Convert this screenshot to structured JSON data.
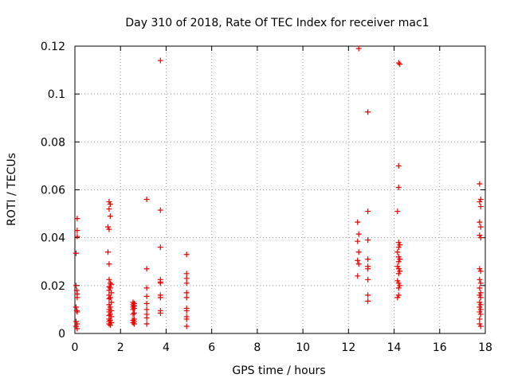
{
  "chart_data": {
    "type": "scatter",
    "title": "Day 310 of 2018, Rate Of TEC Index for receiver mac1",
    "xlabel": "GPS time / hours",
    "ylabel": "ROTI / TECUs",
    "xlim": [
      0,
      18
    ],
    "ylim": [
      0,
      0.12
    ],
    "x_ticks": [
      0,
      2,
      4,
      6,
      8,
      10,
      12,
      14,
      16,
      18
    ],
    "y_ticks": [
      0,
      0.02,
      0.04,
      0.06,
      0.08,
      0.1,
      0.12
    ],
    "x_tick_labels": [
      "0",
      "2",
      "4",
      "6",
      "8",
      "10",
      "12",
      "14",
      "16",
      "18"
    ],
    "y_tick_labels": [
      "0",
      "0.02",
      "0.04",
      "0.06",
      "0.08",
      "0.1",
      "0.12"
    ],
    "grid": true,
    "marker": "+",
    "colors": {
      "points": "#e60000",
      "grid": "#a0a0a0",
      "axes": "#000000"
    },
    "series": [
      {
        "name": "ROTI",
        "points": [
          [
            0.05,
            0.0335
          ],
          [
            0.1,
            0.048
          ],
          [
            0.1,
            0.043
          ],
          [
            0.1,
            0.0405
          ],
          [
            0.05,
            0.02
          ],
          [
            0.08,
            0.018
          ],
          [
            0.1,
            0.0165
          ],
          [
            0.1,
            0.015
          ],
          [
            0.05,
            0.011
          ],
          [
            0.08,
            0.0095
          ],
          [
            0.1,
            0.009
          ],
          [
            0.05,
            0.005
          ],
          [
            0.1,
            0.004
          ],
          [
            0.05,
            0.003
          ],
          [
            0.1,
            0.002
          ],
          [
            1.5,
            0.055
          ],
          [
            1.55,
            0.054
          ],
          [
            1.5,
            0.052
          ],
          [
            1.55,
            0.049
          ],
          [
            1.45,
            0.0445
          ],
          [
            1.5,
            0.0435
          ],
          [
            1.45,
            0.034
          ],
          [
            1.5,
            0.029
          ],
          [
            1.5,
            0.0225
          ],
          [
            1.55,
            0.021
          ],
          [
            1.6,
            0.0205
          ],
          [
            1.5,
            0.0195
          ],
          [
            1.55,
            0.019
          ],
          [
            1.5,
            0.018
          ],
          [
            1.6,
            0.017
          ],
          [
            1.5,
            0.016
          ],
          [
            1.55,
            0.015
          ],
          [
            1.5,
            0.0145
          ],
          [
            1.6,
            0.013
          ],
          [
            1.5,
            0.012
          ],
          [
            1.55,
            0.011
          ],
          [
            1.5,
            0.01
          ],
          [
            1.6,
            0.0095
          ],
          [
            1.5,
            0.009
          ],
          [
            1.55,
            0.008
          ],
          [
            1.5,
            0.0075
          ],
          [
            1.6,
            0.007
          ],
          [
            1.5,
            0.006
          ],
          [
            1.55,
            0.0055
          ],
          [
            1.5,
            0.005
          ],
          [
            1.6,
            0.0045
          ],
          [
            1.5,
            0.004
          ],
          [
            1.55,
            0.0035
          ],
          [
            2.55,
            0.013
          ],
          [
            2.6,
            0.0125
          ],
          [
            2.55,
            0.012
          ],
          [
            2.6,
            0.0115
          ],
          [
            2.55,
            0.011
          ],
          [
            2.6,
            0.0105
          ],
          [
            2.55,
            0.01
          ],
          [
            2.6,
            0.0085
          ],
          [
            2.55,
            0.008
          ],
          [
            2.6,
            0.006
          ],
          [
            2.55,
            0.0055
          ],
          [
            2.6,
            0.005
          ],
          [
            2.55,
            0.0045
          ],
          [
            2.6,
            0.004
          ],
          [
            3.15,
            0.056
          ],
          [
            3.15,
            0.027
          ],
          [
            3.15,
            0.019
          ],
          [
            3.15,
            0.0155
          ],
          [
            3.15,
            0.0125
          ],
          [
            3.15,
            0.01
          ],
          [
            3.15,
            0.008
          ],
          [
            3.15,
            0.0065
          ],
          [
            3.15,
            0.004
          ],
          [
            3.75,
            0.114
          ],
          [
            3.75,
            0.0515
          ],
          [
            3.75,
            0.036
          ],
          [
            3.75,
            0.0225
          ],
          [
            3.75,
            0.0215
          ],
          [
            3.75,
            0.021
          ],
          [
            3.75,
            0.016
          ],
          [
            3.75,
            0.015
          ],
          [
            3.75,
            0.0095
          ],
          [
            3.75,
            0.0085
          ],
          [
            4.9,
            0.033
          ],
          [
            4.9,
            0.025
          ],
          [
            4.9,
            0.023
          ],
          [
            4.9,
            0.021
          ],
          [
            4.9,
            0.017
          ],
          [
            4.9,
            0.015
          ],
          [
            4.9,
            0.0105
          ],
          [
            4.9,
            0.0095
          ],
          [
            4.9,
            0.007
          ],
          [
            4.9,
            0.006
          ],
          [
            4.9,
            0.003
          ],
          [
            12.45,
            0.119
          ],
          [
            12.4,
            0.0465
          ],
          [
            12.45,
            0.0415
          ],
          [
            12.4,
            0.0385
          ],
          [
            12.45,
            0.034
          ],
          [
            12.4,
            0.0305
          ],
          [
            12.45,
            0.029
          ],
          [
            12.4,
            0.024
          ],
          [
            12.85,
            0.0925
          ],
          [
            12.85,
            0.051
          ],
          [
            12.85,
            0.039
          ],
          [
            12.85,
            0.031
          ],
          [
            12.85,
            0.028
          ],
          [
            12.85,
            0.027
          ],
          [
            12.85,
            0.0225
          ],
          [
            12.85,
            0.016
          ],
          [
            12.85,
            0.0135
          ],
          [
            14.2,
            0.113
          ],
          [
            14.25,
            0.1125
          ],
          [
            14.2,
            0.07
          ],
          [
            14.2,
            0.061
          ],
          [
            14.15,
            0.051
          ],
          [
            14.2,
            0.038
          ],
          [
            14.25,
            0.037
          ],
          [
            14.2,
            0.036
          ],
          [
            14.15,
            0.034
          ],
          [
            14.2,
            0.032
          ],
          [
            14.25,
            0.031
          ],
          [
            14.2,
            0.03
          ],
          [
            14.15,
            0.028
          ],
          [
            14.2,
            0.027
          ],
          [
            14.25,
            0.026
          ],
          [
            14.2,
            0.025
          ],
          [
            14.15,
            0.022
          ],
          [
            14.2,
            0.021
          ],
          [
            14.25,
            0.02
          ],
          [
            14.2,
            0.019
          ],
          [
            14.2,
            0.016
          ],
          [
            14.15,
            0.015
          ],
          [
            17.75,
            0.0625
          ],
          [
            17.8,
            0.056
          ],
          [
            17.75,
            0.055
          ],
          [
            17.8,
            0.053
          ],
          [
            17.75,
            0.0465
          ],
          [
            17.8,
            0.0445
          ],
          [
            17.75,
            0.041
          ],
          [
            17.8,
            0.04
          ],
          [
            17.75,
            0.027
          ],
          [
            17.8,
            0.026
          ],
          [
            17.75,
            0.0225
          ],
          [
            17.8,
            0.021
          ],
          [
            17.75,
            0.019
          ],
          [
            17.8,
            0.017
          ],
          [
            17.75,
            0.016
          ],
          [
            17.8,
            0.015
          ],
          [
            17.75,
            0.013
          ],
          [
            17.8,
            0.012
          ],
          [
            17.75,
            0.011
          ],
          [
            17.8,
            0.01
          ],
          [
            17.75,
            0.009
          ],
          [
            17.8,
            0.008
          ],
          [
            17.75,
            0.006
          ],
          [
            17.75,
            0.004
          ],
          [
            17.8,
            0.003
          ]
        ]
      }
    ]
  }
}
